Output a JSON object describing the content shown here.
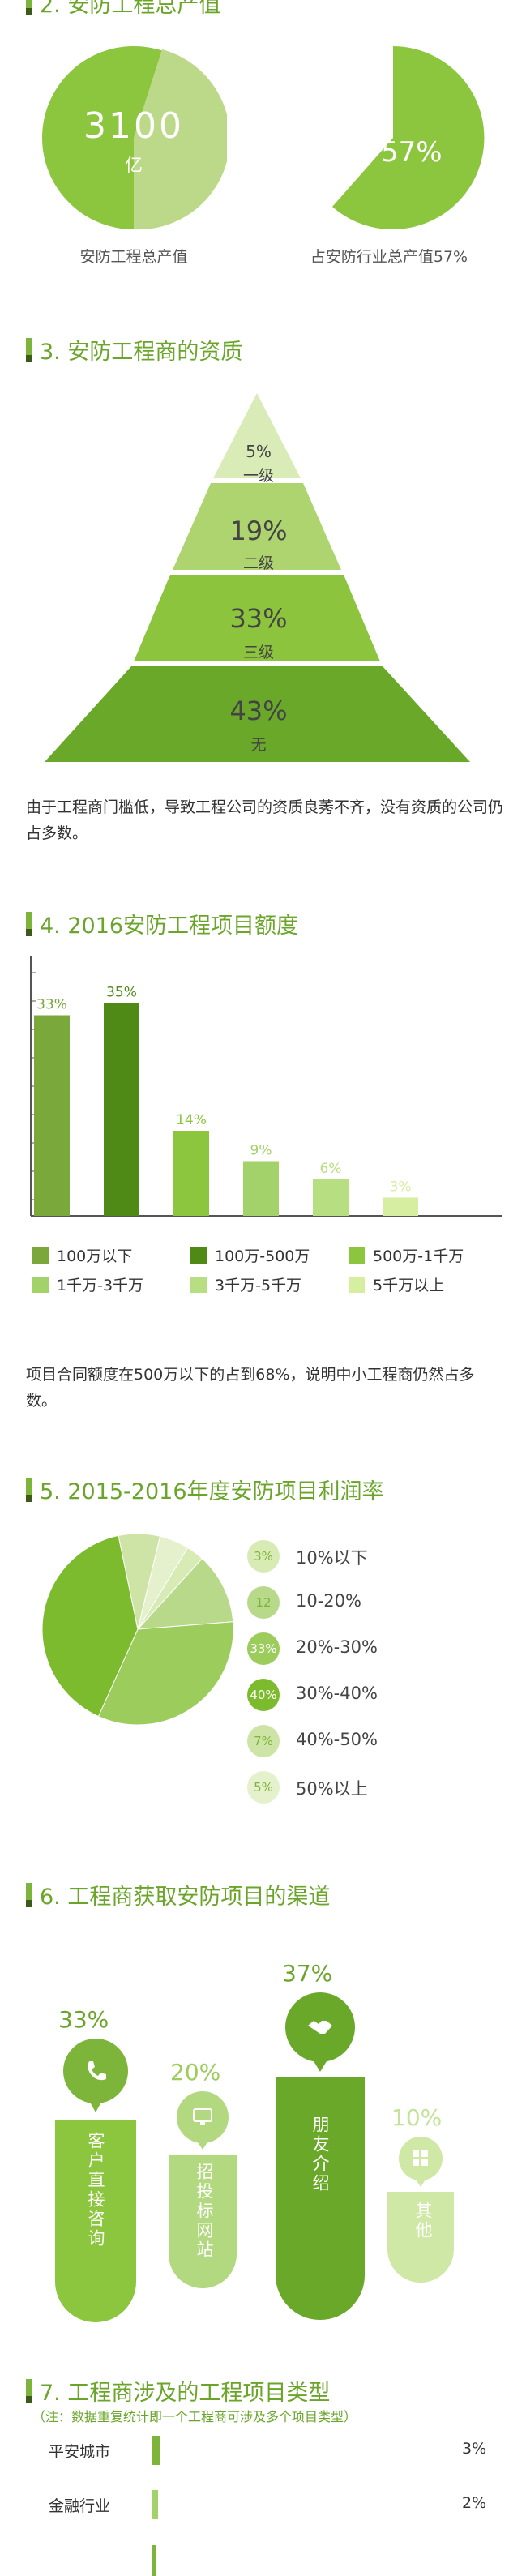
{
  "section2": {
    "title": "2. 安防工程总产值",
    "circle1": {
      "value": "3100",
      "unit": "亿",
      "caption": "安防工程总产值"
    },
    "circle2": {
      "value": "57%",
      "caption": "占安防行业总产值57%"
    }
  },
  "section3": {
    "title": "3. 安防工程商的资质",
    "levels": [
      {
        "pct": "5%",
        "label": "一级"
      },
      {
        "pct": "19%",
        "label": "二级"
      },
      {
        "pct": "33%",
        "label": "三级"
      },
      {
        "pct": "43%",
        "label": "无"
      }
    ],
    "note": "由于工程商门槛低，导致工程公司的资质良莠不齐，没有资质的公司仍占多数。"
  },
  "section4": {
    "title": "4. 2016安防工程项目额度",
    "note": "项目合同额度在500万以下的占到68%，说明中小工程商仍然占多数。"
  },
  "section5": {
    "title": "5. 2015-2016年度安防项目利润率"
  },
  "section6": {
    "title": "6. 工程商获取安防项目的渠道",
    "channels": [
      {
        "pct": "33%",
        "label": "客户直接咨询",
        "icon": "phone-icon"
      },
      {
        "pct": "20%",
        "label": "招投标网站",
        "icon": "monitor-icon"
      },
      {
        "pct": "37%",
        "label": "朋友介绍",
        "icon": "handshake-icon"
      },
      {
        "pct": "10%",
        "label": "其他",
        "icon": "grid-icon"
      }
    ]
  },
  "section7": {
    "title": "7. 工程商涉及的工程项目类型",
    "subtitle": "（注：数据重复统计即一个工程商可涉及多个项目类型）",
    "rows": [
      {
        "label": "平安城市",
        "pct": "3%",
        "value": 3
      },
      {
        "label": "金融行业",
        "pct": "2%",
        "value": 2
      }
    ]
  },
  "chart_data": [
    {
      "type": "bar",
      "title": "4. 2016安防工程项目额度",
      "categories": [
        "100万以下",
        "100万-500万",
        "500万-1千万",
        "1千万-3千万",
        "3千万-5千万",
        "5千万以上"
      ],
      "values": [
        33,
        35,
        14,
        9,
        6,
        3
      ],
      "labels": [
        "33%",
        "35%",
        "14%",
        "9%",
        "6%",
        "3%"
      ],
      "colors": [
        "#7aa83a",
        "#4f8a16",
        "#8cc63f",
        "#a3d16a",
        "#b8de82",
        "#d6ee9f"
      ],
      "ylim": [
        0,
        40
      ],
      "legend": "bottom"
    },
    {
      "type": "pie",
      "title": "5. 2015-2016年度安防项目利润率",
      "categories": [
        "10%以下",
        "10-20%",
        "20%-30%",
        "30%-40%",
        "40%-50%",
        "50%以上"
      ],
      "values": [
        3,
        12,
        33,
        40,
        7,
        5
      ],
      "labels": [
        "3%",
        "12",
        "33%",
        "40%",
        "7%",
        "5%"
      ],
      "colors": [
        "#d8ebb5",
        "#b9d98a",
        "#9ccc5c",
        "#7dbb2e",
        "#cde4a6",
        "#e4f1cc"
      ],
      "legend": "right"
    }
  ]
}
